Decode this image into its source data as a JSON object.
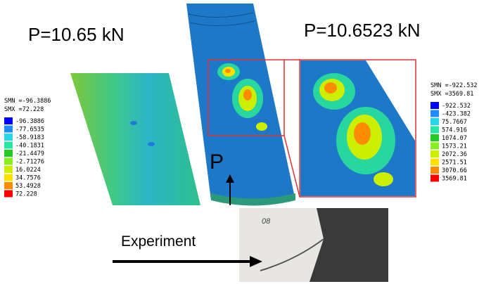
{
  "load_labels": {
    "simulation_left": "P=10.65 kN",
    "simulation_right": "P=10.6523 kN",
    "arrow": "P",
    "experiment": "Experiment",
    "specimen_mark": "08"
  },
  "left_legend": {
    "smn": "SMN =-96.3886",
    "smx": "SMX =72.228",
    "entries": [
      "-96.3886",
      "-77.6535",
      "-58.9183",
      "-40.1831",
      "-21.4479",
      "-2.71276",
      "16.0224",
      "34.7576",
      "53.4928",
      "72.228"
    ]
  },
  "right_legend": {
    "smn": "SMN =-922.532",
    "smx": "SMX =3569.81",
    "entries": [
      "-922.532",
      "-423.382",
      "75.7667",
      "574.916",
      "1074.07",
      "1573.21",
      "2072.36",
      "2571.51",
      "3070.66",
      "3569.81"
    ]
  },
  "legend_colors": [
    "#0000ff",
    "#1e8cff",
    "#2bd5e8",
    "#25e6a5",
    "#22cc22",
    "#88ee22",
    "#ccee00",
    "#ffe000",
    "#ff8c00",
    "#ff0000"
  ]
}
